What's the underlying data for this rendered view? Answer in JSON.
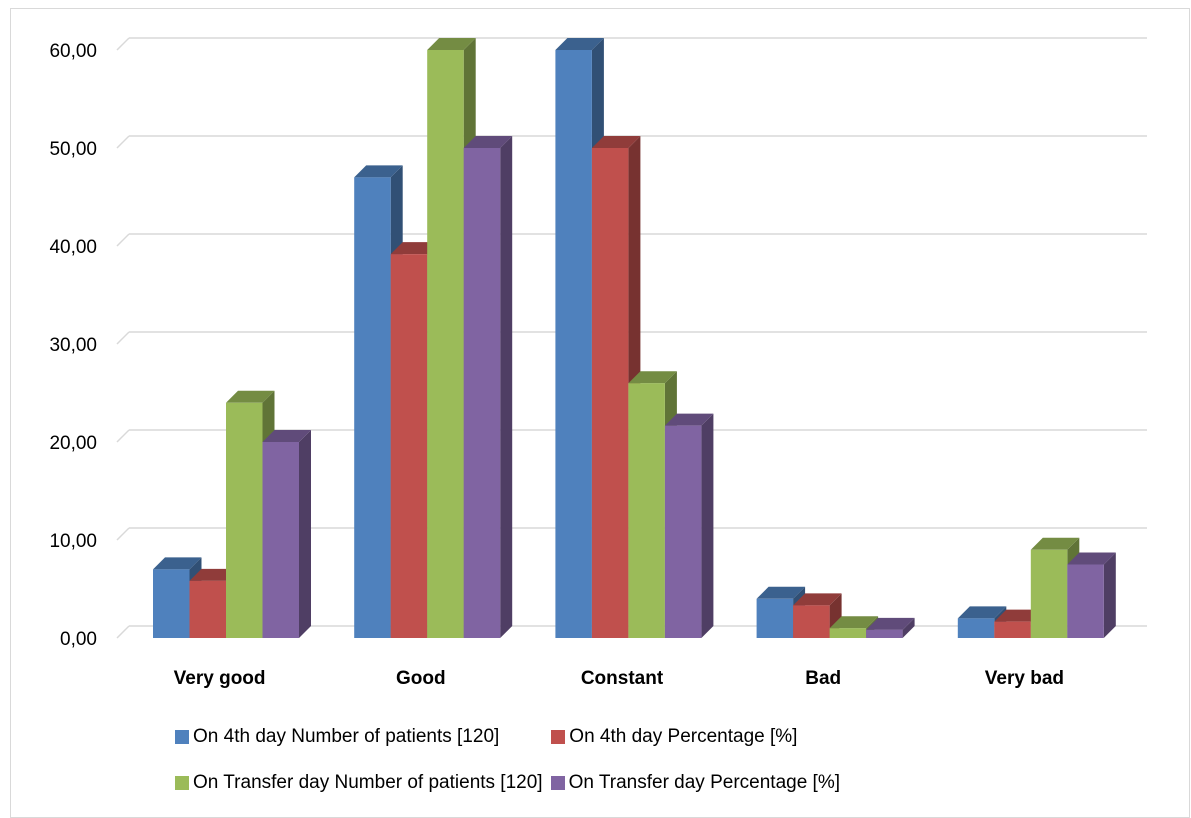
{
  "chart_data": {
    "type": "bar",
    "style": "3d-clustered",
    "categories": [
      "Very good",
      "Good",
      "Constant",
      "Bad",
      "Very bad"
    ],
    "series": [
      {
        "name": "On 4th day Number of patients [120]",
        "color": "#4f81bd",
        "values": [
          7,
          47,
          60,
          4,
          2
        ]
      },
      {
        "name": "On 4th day Percentage [%]",
        "color": "#c0504d",
        "values": [
          5.83,
          39.17,
          50,
          3.33,
          1.67
        ]
      },
      {
        "name": "On Transfer day Number of patients [120]",
        "color": "#9bbb59",
        "values": [
          24,
          60,
          26,
          1,
          9
        ]
      },
      {
        "name": "On Transfer day Percentage [%]",
        "color": "#8064a2",
        "values": [
          20,
          50,
          21.67,
          0.83,
          7.5
        ]
      }
    ],
    "ylim": [
      0,
      60
    ],
    "yticks": [
      "0,00",
      "10,00",
      "20,00",
      "30,00",
      "40,00",
      "50,00",
      "60,00"
    ],
    "grid": true,
    "legend": "bottom"
  }
}
